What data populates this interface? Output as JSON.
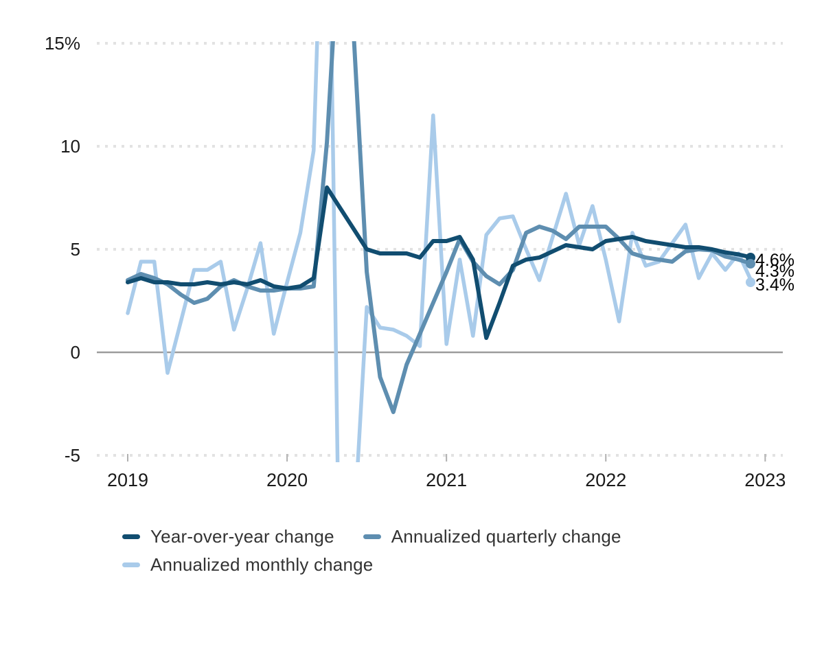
{
  "chart_data": {
    "type": "line",
    "title": "",
    "xlabel": "",
    "ylabel": "",
    "x_unit": "month",
    "x_start": "2019-01",
    "x_end": "2022-12",
    "months_count": 48,
    "ylim": [
      -5,
      15
    ],
    "y_ticks": [
      15,
      10,
      5,
      0,
      -5
    ],
    "y_tick_labels": [
      "15%",
      "10",
      "5",
      "0",
      "-5"
    ],
    "x_tick_labels": [
      "2019",
      "2020",
      "2021",
      "2022",
      "2023"
    ],
    "grid": "dotted-horizontal, solid zero line",
    "legend_position": "bottom-left",
    "series": [
      {
        "name": "Year-over-year change",
        "color": "#114d70",
        "end_label": "4.6%",
        "values": [
          3.4,
          3.6,
          3.4,
          3.4,
          3.3,
          3.3,
          3.4,
          3.3,
          3.4,
          3.3,
          3.5,
          3.2,
          3.1,
          3.2,
          3.6,
          8.0,
          7.0,
          6.0,
          5.0,
          4.8,
          4.8,
          4.8,
          4.6,
          5.4,
          5.4,
          5.6,
          4.5,
          0.7,
          2.4,
          4.2,
          4.5,
          4.6,
          4.9,
          5.2,
          5.1,
          5.0,
          5.4,
          5.5,
          5.6,
          5.4,
          5.3,
          5.2,
          5.1,
          5.1,
          5.0,
          4.85,
          4.75,
          4.6
        ]
      },
      {
        "name": "Annualized quarterly change",
        "color": "#5e8eb0",
        "end_label": "4.3%",
        "values": [
          3.5,
          3.8,
          3.6,
          3.3,
          2.8,
          2.4,
          2.6,
          3.2,
          3.5,
          3.2,
          3.0,
          3.0,
          3.1,
          3.1,
          3.2,
          10.2,
          21.0,
          15.6,
          3.9,
          -1.2,
          -2.9,
          -0.6,
          0.9,
          2.4,
          3.9,
          5.5,
          4.4,
          3.7,
          3.3,
          4.0,
          5.8,
          6.1,
          5.9,
          5.5,
          6.1,
          6.1,
          6.1,
          5.5,
          4.8,
          4.6,
          4.5,
          4.4,
          4.9,
          5.0,
          4.95,
          4.65,
          4.5,
          4.3
        ]
      },
      {
        "name": "Annualized monthly change",
        "color": "#a9cbea",
        "end_label": "3.4%",
        "values": [
          1.9,
          4.4,
          4.4,
          -1.0,
          1.5,
          4.0,
          4.0,
          4.4,
          1.1,
          3.1,
          5.3,
          0.9,
          3.4,
          5.8,
          9.8,
          30.0,
          -14.0,
          -9.0,
          2.2,
          1.2,
          1.1,
          0.8,
          0.3,
          11.5,
          0.4,
          4.5,
          0.8,
          5.7,
          6.5,
          6.6,
          5.0,
          3.5,
          5.6,
          7.7,
          5.2,
          7.1,
          4.5,
          1.5,
          5.8,
          4.2,
          4.4,
          5.3,
          6.2,
          3.6,
          4.8,
          4.0,
          4.8,
          3.4
        ]
      }
    ]
  },
  "colors": {
    "background": "#ffffff",
    "gridline": "#e2e2e2",
    "zero_line": "#9c9c9c",
    "axis_tick_mark": "#b0b0b0",
    "axis_label": "#1a1a1a",
    "end_label": "#000000",
    "legend_text": "#333333"
  }
}
